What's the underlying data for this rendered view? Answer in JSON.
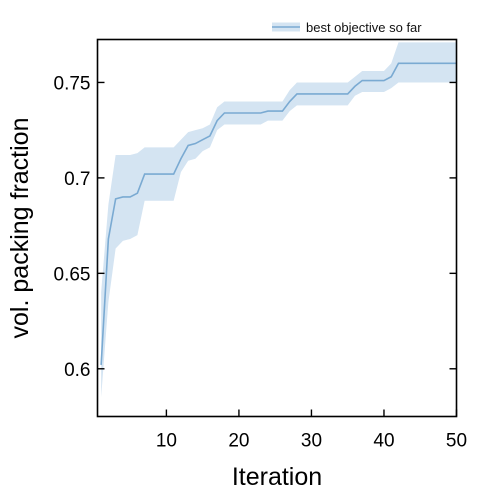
{
  "chart_data": {
    "type": "line",
    "title": "",
    "xlabel": "Iteration",
    "ylabel": "vol. packing fraction",
    "xlim": [
      0.5,
      50
    ],
    "ylim": [
      0.575,
      0.7725
    ],
    "xticks": [
      10,
      20,
      30,
      40,
      50
    ],
    "xtick_labels": [
      "10",
      "20",
      "30",
      "40",
      "50"
    ],
    "yticks": [
      0.6,
      0.65,
      0.7,
      0.75
    ],
    "ytick_labels": [
      "0.6",
      "0.65",
      "0.7",
      "0.75"
    ],
    "grid": false,
    "legend_position": "top-right",
    "colors": {
      "line": "#7aaad2",
      "band": "#d4e4f2"
    },
    "series": [
      {
        "name": "best objective so far",
        "x": [
          1,
          2,
          3,
          4,
          5,
          6,
          7,
          8,
          9,
          10,
          11,
          12,
          13,
          14,
          15,
          16,
          17,
          18,
          19,
          20,
          21,
          22,
          23,
          24,
          25,
          26,
          27,
          28,
          29,
          30,
          31,
          32,
          33,
          34,
          35,
          36,
          37,
          38,
          39,
          40,
          41,
          42,
          43,
          44,
          45,
          46,
          47,
          48,
          49,
          50
        ],
        "values": [
          0.602,
          0.668,
          0.689,
          0.69,
          0.69,
          0.692,
          0.702,
          0.702,
          0.702,
          0.702,
          0.702,
          0.71,
          0.717,
          0.718,
          0.72,
          0.722,
          0.73,
          0.734,
          0.734,
          0.734,
          0.734,
          0.734,
          0.734,
          0.735,
          0.735,
          0.735,
          0.74,
          0.744,
          0.744,
          0.744,
          0.744,
          0.744,
          0.744,
          0.744,
          0.744,
          0.748,
          0.751,
          0.751,
          0.751,
          0.751,
          0.753,
          0.76,
          0.76,
          0.76,
          0.76,
          0.76,
          0.76,
          0.76,
          0.76,
          0.76
        ],
        "lower": [
          0.585,
          0.635,
          0.663,
          0.667,
          0.668,
          0.67,
          0.688,
          0.688,
          0.688,
          0.688,
          0.688,
          0.703,
          0.709,
          0.71,
          0.714,
          0.716,
          0.725,
          0.728,
          0.728,
          0.728,
          0.728,
          0.728,
          0.728,
          0.73,
          0.73,
          0.73,
          0.735,
          0.738,
          0.738,
          0.738,
          0.738,
          0.738,
          0.738,
          0.738,
          0.738,
          0.743,
          0.745,
          0.745,
          0.745,
          0.745,
          0.747,
          0.75,
          0.75,
          0.75,
          0.75,
          0.75,
          0.75,
          0.75,
          0.75,
          0.75
        ],
        "upper": [
          0.64,
          0.686,
          0.712,
          0.712,
          0.712,
          0.713,
          0.716,
          0.716,
          0.716,
          0.716,
          0.716,
          0.72,
          0.724,
          0.725,
          0.726,
          0.728,
          0.737,
          0.74,
          0.74,
          0.74,
          0.74,
          0.74,
          0.74,
          0.74,
          0.74,
          0.74,
          0.746,
          0.75,
          0.75,
          0.75,
          0.75,
          0.75,
          0.75,
          0.75,
          0.75,
          0.753,
          0.756,
          0.756,
          0.756,
          0.756,
          0.76,
          0.771,
          0.771,
          0.771,
          0.771,
          0.771,
          0.771,
          0.771,
          0.771,
          0.771
        ]
      }
    ]
  }
}
